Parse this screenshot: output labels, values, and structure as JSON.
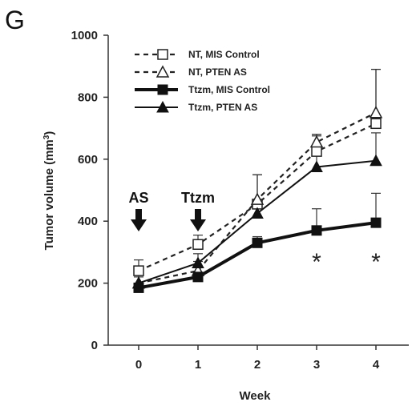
{
  "chart_data": {
    "type": "line",
    "panel_label": "G",
    "xlabel": "Week",
    "ylabel_main": "Tumor volume (mm",
    "ylabel_sup": "3",
    "ylabel_tail": ")",
    "x": [
      0,
      1,
      2,
      3,
      4
    ],
    "x_ticks": [
      "0",
      "1",
      "2",
      "3",
      "4"
    ],
    "ylim": [
      0,
      1000
    ],
    "y_ticks": [
      "0",
      "200",
      "400",
      "600",
      "800",
      "1000"
    ],
    "grid": false,
    "legend_position": "top-left",
    "series": [
      {
        "name": "NT, MIS Control",
        "values": [
          240,
          325,
          455,
          625,
          715
        ],
        "errors": [
          35,
          30,
          95,
          55,
          175
        ],
        "line": "dashed",
        "marker": "square-open"
      },
      {
        "name": "NT, PTEN AS",
        "values": [
          200,
          240,
          470,
          655,
          750
        ],
        "errors": [
          30,
          30,
          80,
          25,
          140
        ],
        "line": "dashed",
        "marker": "triangle-open"
      },
      {
        "name": "Ttzm, MIS Control",
        "values": [
          185,
          220,
          330,
          370,
          395
        ],
        "errors": [
          15,
          15,
          20,
          70,
          95
        ],
        "line": "thick",
        "marker": "square-filled"
      },
      {
        "name": "Ttzm, PTEN AS",
        "values": [
          200,
          265,
          425,
          575,
          595
        ],
        "errors": [
          20,
          30,
          40,
          100,
          90
        ],
        "line": "solid",
        "marker": "triangle-filled"
      }
    ],
    "annotations": [
      {
        "text": "AS",
        "x": 0,
        "y": 460
      },
      {
        "text": "Ttzm",
        "x": 1,
        "y": 460
      }
    ],
    "significance": [
      {
        "text": "*",
        "x": 3,
        "y": 300
      },
      {
        "text": "*",
        "x": 4,
        "y": 300
      }
    ]
  }
}
